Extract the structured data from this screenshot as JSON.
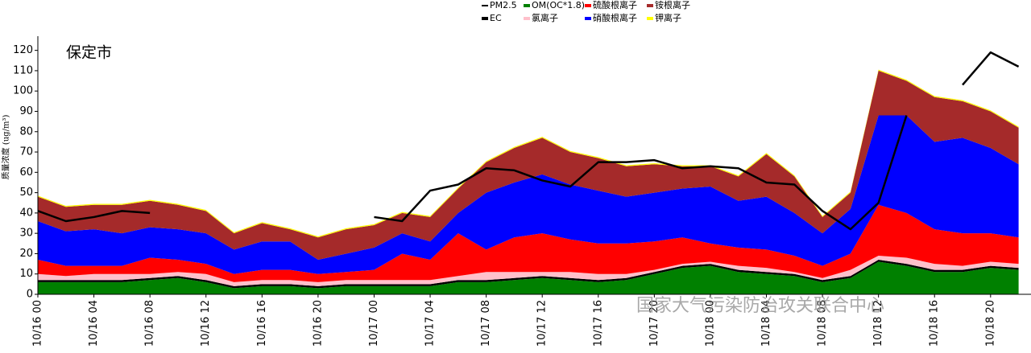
{
  "chart_data": {
    "type": "stacked_area",
    "title": "保定市",
    "y_label": "质量浓度 (ug/m³)",
    "watermark": "国家大气污染防治攻关联合中心",
    "x": [
      0,
      2,
      4,
      6,
      8,
      10,
      12,
      14,
      16,
      18,
      20,
      22,
      24,
      26,
      28,
      30,
      32,
      34,
      36,
      38,
      40,
      42,
      44,
      46,
      48,
      50,
      52,
      54,
      56,
      58,
      60,
      62,
      64,
      66,
      68,
      70
    ],
    "xlim": [
      0,
      71
    ],
    "xticks": [
      {
        "value": 0,
        "label": "10/16 00"
      },
      {
        "value": 4,
        "label": "10/16 04"
      },
      {
        "value": 8,
        "label": "10/16 08"
      },
      {
        "value": 12,
        "label": "10/16 12"
      },
      {
        "value": 16,
        "label": "10/16 16"
      },
      {
        "value": 20,
        "label": "10/16 20"
      },
      {
        "value": 24,
        "label": "10/17 00"
      },
      {
        "value": 28,
        "label": "10/17 04"
      },
      {
        "value": 32,
        "label": "10/17 08"
      },
      {
        "value": 36,
        "label": "10/17 12"
      },
      {
        "value": 40,
        "label": "10/17 16"
      },
      {
        "value": 44,
        "label": "10/17 20"
      },
      {
        "value": 48,
        "label": "10/18 00"
      },
      {
        "value": 52,
        "label": "10/18 04"
      },
      {
        "value": 56,
        "label": "10/18 08"
      },
      {
        "value": 60,
        "label": "10/18 12"
      },
      {
        "value": 64,
        "label": "10/18 16"
      },
      {
        "value": 68,
        "label": "10/18 20"
      }
    ],
    "ylim": [
      0,
      125
    ],
    "yticks": [
      0,
      10,
      20,
      30,
      40,
      50,
      60,
      70,
      80,
      90,
      100,
      110,
      120
    ],
    "series": [
      {
        "name": "PM2.5",
        "type": "line",
        "color": "#000000",
        "values": [
          41,
          36,
          38,
          41,
          40,
          null,
          null,
          null,
          null,
          null,
          null,
          null,
          38,
          36,
          51,
          54,
          62,
          61,
          56,
          53,
          65,
          65,
          66,
          62,
          63,
          62,
          55,
          54,
          41,
          32,
          45,
          88,
          null,
          103,
          119,
          112
        ]
      },
      {
        "name": "OM(OC*1.8)",
        "type": "area",
        "color": "#008000",
        "values": [
          6,
          6,
          6,
          6,
          7,
          8,
          6,
          3,
          4,
          4,
          3,
          4,
          4,
          4,
          4,
          6,
          6,
          7,
          8,
          7,
          6,
          7,
          10,
          13,
          14,
          11,
          10,
          9,
          6,
          8,
          16,
          14,
          11,
          11,
          13,
          12
        ]
      },
      {
        "name": "EC",
        "type": "area",
        "color": "#000000",
        "values": [
          1,
          1,
          1,
          1,
          1,
          1,
          1,
          1,
          1,
          1,
          1,
          1,
          1,
          1,
          1,
          1,
          1,
          1,
          1,
          1,
          1,
          1,
          1,
          1,
          1,
          1,
          1,
          1,
          1,
          1,
          1,
          1,
          1,
          1,
          1,
          1
        ]
      },
      {
        "name": "氯离子",
        "type": "area",
        "color": "#ffc0cb",
        "values": [
          3,
          2,
          3,
          3,
          2,
          2,
          3,
          2,
          2,
          2,
          2,
          2,
          2,
          2,
          2,
          2,
          4,
          3,
          2,
          3,
          3,
          2,
          1,
          1,
          1,
          2,
          2,
          1,
          1,
          3,
          2,
          3,
          3,
          2,
          2,
          2
        ]
      },
      {
        "name": "硫酸根离子",
        "type": "area",
        "color": "#ff0000",
        "values": [
          7,
          5,
          4,
          4,
          8,
          6,
          5,
          4,
          5,
          5,
          4,
          4,
          5,
          13,
          10,
          21,
          11,
          17,
          19,
          16,
          15,
          15,
          14,
          13,
          9,
          9,
          9,
          8,
          6,
          8,
          25,
          22,
          17,
          16,
          14,
          13
        ]
      },
      {
        "name": "硝酸根离子",
        "type": "area",
        "color": "#0000ff",
        "values": [
          19,
          17,
          18,
          16,
          15,
          15,
          15,
          12,
          14,
          14,
          7,
          9,
          11,
          10,
          9,
          10,
          28,
          27,
          29,
          27,
          26,
          23,
          24,
          24,
          28,
          23,
          26,
          21,
          16,
          22,
          44,
          48,
          43,
          47,
          42,
          36
        ]
      },
      {
        "name": "铵根离子",
        "type": "area",
        "color": "#a52a2a",
        "values": [
          12,
          12,
          12,
          14,
          13,
          12,
          11,
          8,
          9,
          6,
          11,
          12,
          11,
          10,
          12,
          12,
          15,
          17,
          18,
          16,
          16,
          15,
          14,
          11,
          10,
          12,
          21,
          18,
          8,
          8,
          22,
          17,
          22,
          18,
          18,
          18
        ]
      },
      {
        "name": "钾离子",
        "type": "area",
        "color": "#ffff00",
        "values": [
          0.5,
          0.5,
          0.5,
          0.5,
          0.5,
          0.5,
          0.5,
          0.5,
          0.5,
          0.5,
          0.5,
          0.5,
          0.5,
          0.5,
          0.5,
          0.5,
          0.5,
          0.5,
          0.5,
          0.5,
          0.5,
          0.5,
          0.5,
          0.5,
          0.5,
          0.5,
          0.5,
          0.5,
          0.5,
          0.5,
          0.5,
          0.5,
          0.5,
          0.5,
          0.5,
          0.5
        ]
      }
    ]
  }
}
